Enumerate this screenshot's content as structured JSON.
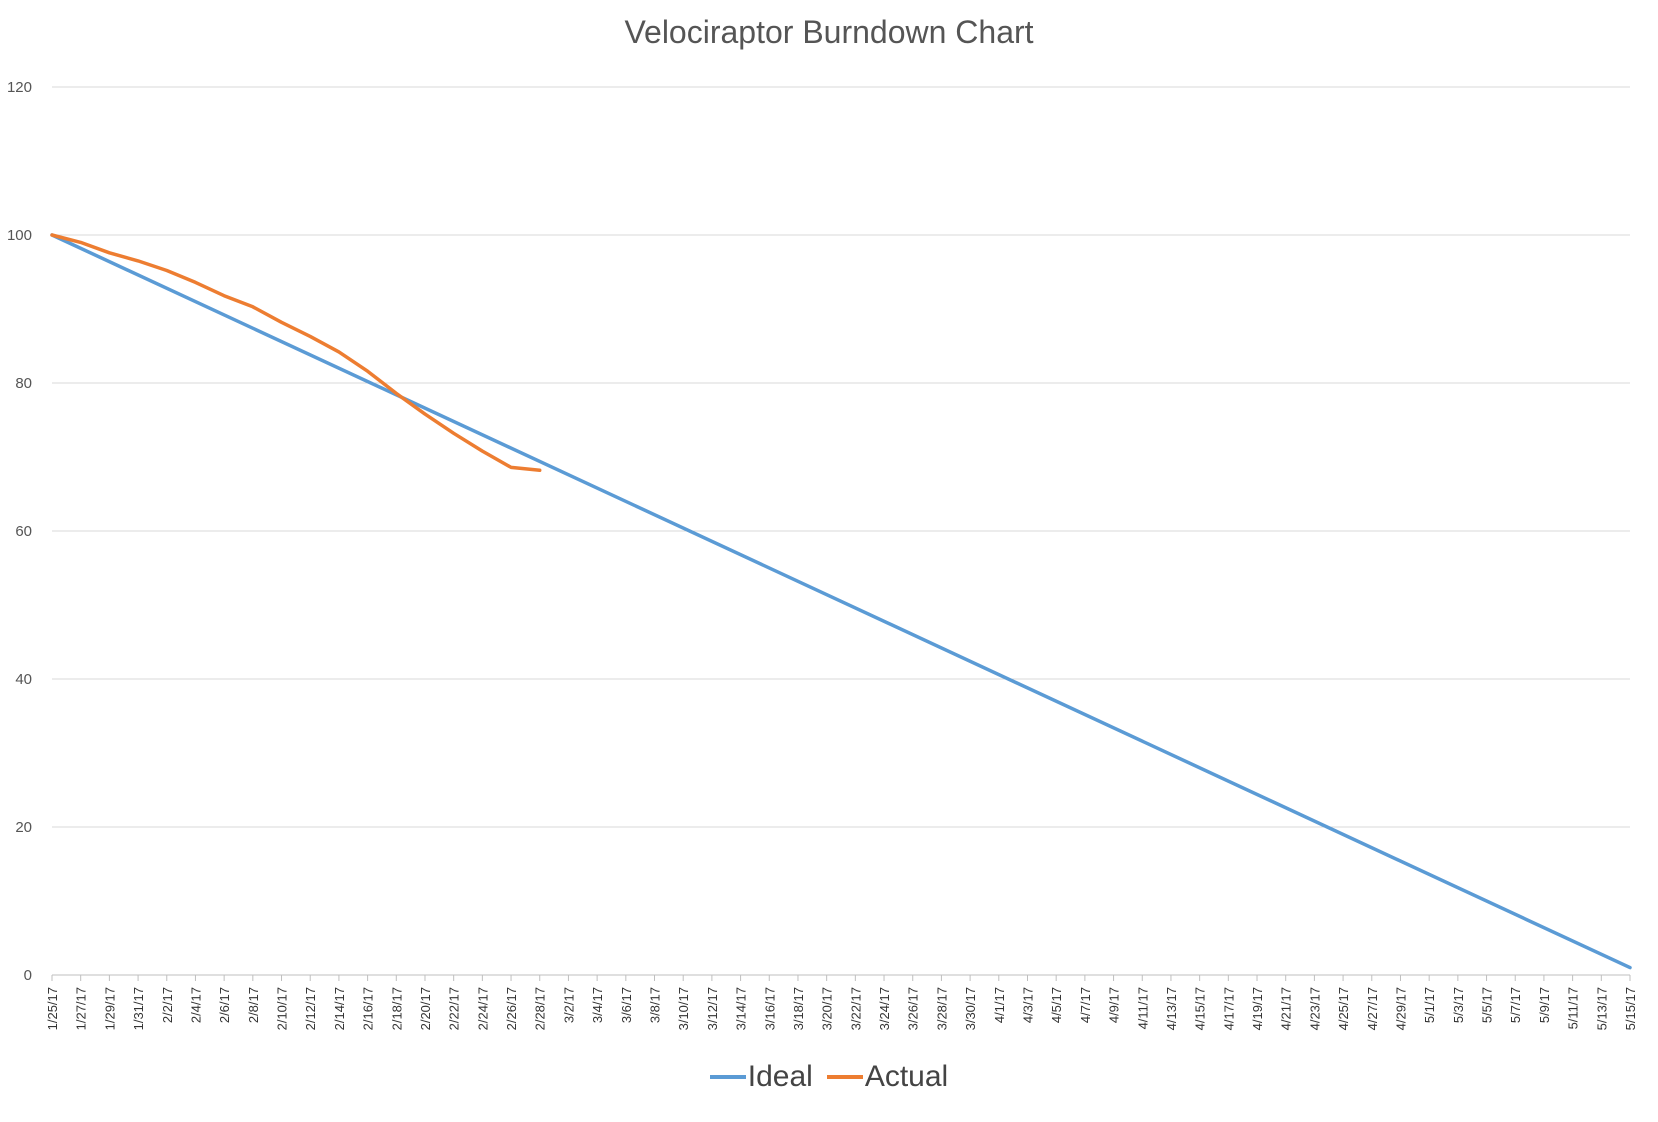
{
  "chart_data": {
    "type": "line",
    "title": "Velociraptor Burndown Chart",
    "xlabel": "",
    "ylabel": "",
    "ylim": [
      0,
      120
    ],
    "yticks": [
      0,
      20,
      40,
      60,
      80,
      100,
      120
    ],
    "grid": true,
    "legend_position": "bottom",
    "x_start": "1/25/17",
    "x_end": "5/15/17",
    "x_ticks": [
      "1/25/17",
      "1/27/17",
      "1/29/17",
      "1/31/17",
      "2/2/17",
      "2/4/17",
      "2/6/17",
      "2/8/17",
      "2/10/17",
      "2/12/17",
      "2/14/17",
      "2/16/17",
      "2/18/17",
      "2/20/17",
      "2/22/17",
      "2/24/17",
      "2/26/17",
      "2/28/17",
      "3/2/17",
      "3/4/17",
      "3/6/17",
      "3/8/17",
      "3/10/17",
      "3/12/17",
      "3/14/17",
      "3/16/17",
      "3/18/17",
      "3/20/17",
      "3/22/17",
      "3/24/17",
      "3/26/17",
      "3/28/17",
      "3/30/17",
      "4/1/17",
      "4/3/17",
      "4/5/17",
      "4/7/17",
      "4/9/17",
      "4/11/17",
      "4/13/17",
      "4/15/17",
      "4/17/17",
      "4/19/17",
      "4/21/17",
      "4/23/17",
      "4/25/17",
      "4/27/17",
      "4/29/17",
      "5/1/17",
      "5/3/17",
      "5/5/17",
      "5/7/17",
      "5/9/17",
      "5/11/17",
      "5/13/17",
      "5/15/17"
    ],
    "series": [
      {
        "name": "Ideal",
        "color": "#5b9bd5",
        "points": [
          [
            "1/25/17",
            100
          ],
          [
            "5/15/17",
            1
          ]
        ]
      },
      {
        "name": "Actual",
        "color": "#ed7d31",
        "points": [
          [
            "1/25/17",
            100
          ],
          [
            "1/27/17",
            99
          ],
          [
            "1/29/17",
            97.6
          ],
          [
            "1/31/17",
            96.5
          ],
          [
            "2/2/17",
            95.2
          ],
          [
            "2/4/17",
            93.6
          ],
          [
            "2/6/17",
            91.8
          ],
          [
            "2/8/17",
            90.3
          ],
          [
            "2/10/17",
            88.2
          ],
          [
            "2/12/17",
            86.3
          ],
          [
            "2/14/17",
            84.2
          ],
          [
            "2/16/17",
            81.6
          ],
          [
            "2/18/17",
            78.6
          ],
          [
            "2/20/17",
            75.8
          ],
          [
            "2/22/17",
            73.2
          ],
          [
            "2/24/17",
            70.8
          ],
          [
            "2/26/17",
            68.6
          ],
          [
            "2/28/17",
            68.2
          ]
        ]
      }
    ]
  }
}
